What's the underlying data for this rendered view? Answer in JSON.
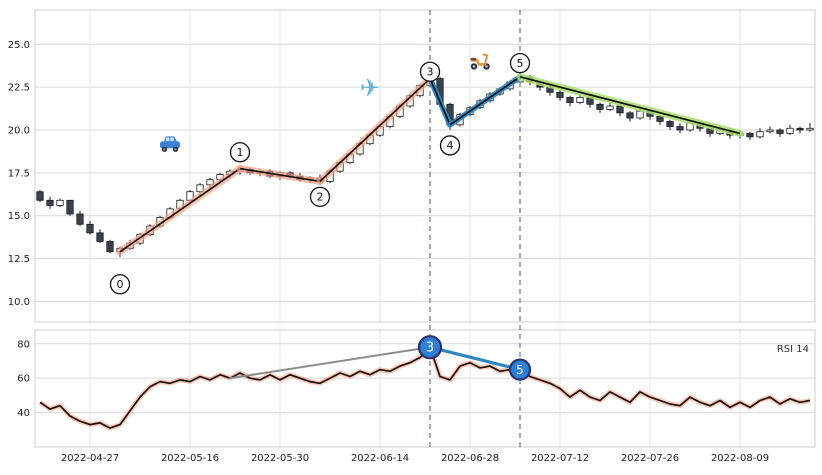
{
  "colors": {
    "background": "#ffffff",
    "grid_h": "#d9d9d9",
    "grid_v": "#e6e6e6",
    "panel_border": "#cccccc",
    "candle_up_fill": "#ffffff",
    "candle_down_fill": "#39414f",
    "candle_border": "#1a1a1a",
    "impulse_glow_salmon": "#f7a083",
    "wave_blue": "#2e86c1",
    "end_glow_green": "#aade72",
    "line_core_black": "#111111",
    "vline_dashed": "#64748b",
    "rsi_line_core": "#1a0d02",
    "rsi_glow": "#f7a083",
    "rsi_gray_trend": "#8c8c8c",
    "rsi_blue_trend": "#2e86c1",
    "marker_fill_blue": "#2e7fd6",
    "marker_ring_navy": "#2c2f6b",
    "tick_text": "#202020",
    "car_body": "#3b82d6",
    "plane_blue": "#6fb3d9",
    "scooter_orange": "#e8913a"
  },
  "chart_data": [
    {
      "type": "candlestick",
      "title": "",
      "x_tick_labels": [
        "2022-04-27",
        "2022-05-16",
        "2022-05-30",
        "2022-06-14",
        "2022-06-28",
        "2022-07-12",
        "2022-07-26",
        "2022-08-09"
      ],
      "x_tick_indices": [
        5,
        15,
        24,
        34,
        43,
        52,
        61,
        70
      ],
      "yticks": [
        25.0,
        22.5,
        20.0,
        17.5,
        15.0,
        12.5,
        10.0
      ],
      "ytick_labels": [
        "25.0",
        "22.5",
        "20.0",
        "17.5",
        "15.0",
        "12.5",
        "10.0"
      ],
      "ylim": [
        8.8,
        27.0
      ],
      "grid": true,
      "candles": [
        [
          16.4,
          16.5,
          15.8,
          15.9
        ],
        [
          15.9,
          16.1,
          15.4,
          15.6
        ],
        [
          15.6,
          16.0,
          15.5,
          15.9
        ],
        [
          15.9,
          15.9,
          15.0,
          15.1
        ],
        [
          15.1,
          15.3,
          14.4,
          14.5
        ],
        [
          14.5,
          14.7,
          13.9,
          14.0
        ],
        [
          14.0,
          14.2,
          13.4,
          13.5
        ],
        [
          13.5,
          13.6,
          12.8,
          12.9
        ],
        [
          12.9,
          13.2,
          12.6,
          13.1
        ],
        [
          13.1,
          13.6,
          13.0,
          13.4
        ],
        [
          13.4,
          14.0,
          13.3,
          13.9
        ],
        [
          13.9,
          14.5,
          13.8,
          14.4
        ],
        [
          14.4,
          15.0,
          14.3,
          14.9
        ],
        [
          14.9,
          15.5,
          14.8,
          15.4
        ],
        [
          15.4,
          16.0,
          15.3,
          15.9
        ],
        [
          15.9,
          16.5,
          15.8,
          16.4
        ],
        [
          16.4,
          16.9,
          16.2,
          16.8
        ],
        [
          16.8,
          17.2,
          16.6,
          17.1
        ],
        [
          17.1,
          17.5,
          16.9,
          17.4
        ],
        [
          17.4,
          17.7,
          17.2,
          17.6
        ],
        [
          17.6,
          17.9,
          17.4,
          17.7
        ],
        [
          17.7,
          17.8,
          17.4,
          17.5
        ],
        [
          17.5,
          17.7,
          17.3,
          17.6
        ],
        [
          17.6,
          17.7,
          17.2,
          17.3
        ],
        [
          17.3,
          17.6,
          17.1,
          17.5
        ],
        [
          17.5,
          17.6,
          17.2,
          17.3
        ],
        [
          17.3,
          17.5,
          17.0,
          17.1
        ],
        [
          17.1,
          17.3,
          16.9,
          17.2
        ],
        [
          17.2,
          17.4,
          16.8,
          17.0
        ],
        [
          17.0,
          17.7,
          16.9,
          17.6
        ],
        [
          17.6,
          18.2,
          17.5,
          18.1
        ],
        [
          18.1,
          18.7,
          18.0,
          18.6
        ],
        [
          18.6,
          19.3,
          18.5,
          19.2
        ],
        [
          19.2,
          19.8,
          19.1,
          19.7
        ],
        [
          19.7,
          20.3,
          19.6,
          20.2
        ],
        [
          20.2,
          20.9,
          20.1,
          20.8
        ],
        [
          20.8,
          21.5,
          20.7,
          21.4
        ],
        [
          21.4,
          22.1,
          21.3,
          22.0
        ],
        [
          22.0,
          22.7,
          21.9,
          22.6
        ],
        [
          22.6,
          23.3,
          22.5,
          23.0
        ],
        [
          23.0,
          23.1,
          21.3,
          21.5
        ],
        [
          21.5,
          21.6,
          20.0,
          20.3
        ],
        [
          20.3,
          21.0,
          20.2,
          20.9
        ],
        [
          20.9,
          21.4,
          20.8,
          21.3
        ],
        [
          21.3,
          21.8,
          21.2,
          21.7
        ],
        [
          21.7,
          22.2,
          21.6,
          22.1
        ],
        [
          22.1,
          22.5,
          22.0,
          22.4
        ],
        [
          22.4,
          22.9,
          22.3,
          22.8
        ],
        [
          22.8,
          23.4,
          22.7,
          23.1
        ],
        [
          23.1,
          23.2,
          22.6,
          22.8
        ],
        [
          22.8,
          22.9,
          22.3,
          22.5
        ],
        [
          22.5,
          22.7,
          22.0,
          22.2
        ],
        [
          22.2,
          22.4,
          21.7,
          21.9
        ],
        [
          21.9,
          22.0,
          21.4,
          21.6
        ],
        [
          21.6,
          22.1,
          21.5,
          21.9
        ],
        [
          21.9,
          22.0,
          21.3,
          21.5
        ],
        [
          21.5,
          21.6,
          21.0,
          21.2
        ],
        [
          21.2,
          21.6,
          21.1,
          21.4
        ],
        [
          21.4,
          21.5,
          20.8,
          21.0
        ],
        [
          21.0,
          21.1,
          20.5,
          20.7
        ],
        [
          20.7,
          21.3,
          20.6,
          21.1
        ],
        [
          21.1,
          21.2,
          20.6,
          20.8
        ],
        [
          20.8,
          20.9,
          20.3,
          20.5
        ],
        [
          20.5,
          20.6,
          20.0,
          20.2
        ],
        [
          20.2,
          20.4,
          19.8,
          20.0
        ],
        [
          20.0,
          20.6,
          19.9,
          20.4
        ],
        [
          20.4,
          20.5,
          19.9,
          20.1
        ],
        [
          20.1,
          20.2,
          19.6,
          19.8
        ],
        [
          19.8,
          20.2,
          19.7,
          20.0
        ],
        [
          20.0,
          20.1,
          19.5,
          19.7
        ],
        [
          19.7,
          20.0,
          19.5,
          19.8
        ],
        [
          19.8,
          19.9,
          19.4,
          19.6
        ],
        [
          19.6,
          20.1,
          19.5,
          19.9
        ],
        [
          19.9,
          20.2,
          19.8,
          20.0
        ],
        [
          20.0,
          20.1,
          19.6,
          19.8
        ],
        [
          19.8,
          20.3,
          19.7,
          20.1
        ],
        [
          20.1,
          20.2,
          19.8,
          20.0
        ],
        [
          20.0,
          20.4,
          19.9,
          20.1
        ]
      ],
      "trend_lines": [
        {
          "from": [
            8,
            12.9
          ],
          "to": [
            20,
            17.75
          ],
          "color_key": "salmon"
        },
        {
          "from": [
            20,
            17.75
          ],
          "to": [
            28,
            17.0
          ],
          "color_key": "salmon"
        },
        {
          "from": [
            28,
            17.0
          ],
          "to": [
            39,
            23.0
          ],
          "color_key": "salmon"
        },
        {
          "from": [
            39,
            23.0
          ],
          "to": [
            41,
            20.3
          ],
          "color_key": "blue"
        },
        {
          "from": [
            41,
            20.3
          ],
          "to": [
            48,
            23.1
          ],
          "color_key": "blue"
        },
        {
          "from": [
            48,
            23.1
          ],
          "to": [
            70,
            19.8
          ],
          "color_key": "green"
        }
      ],
      "wave_labels": [
        {
          "label": "0",
          "index": 8,
          "price": 11.0
        },
        {
          "label": "1",
          "index": 20,
          "price": 18.7
        },
        {
          "label": "2",
          "index": 28,
          "price": 16.1
        },
        {
          "label": "3",
          "index": 39,
          "price": 23.4
        },
        {
          "label": "4",
          "index": 41,
          "price": 19.1
        },
        {
          "label": "5",
          "index": 48,
          "price": 23.9
        }
      ],
      "emojis": [
        {
          "name": "car-icon",
          "char": "🚙",
          "index": 13,
          "price": 19.1
        },
        {
          "name": "airplane-icon",
          "char": "✈️",
          "index": 33,
          "price": 22.4
        },
        {
          "name": "scooter-icon",
          "char": "🛵",
          "index": 44,
          "price": 24.0
        }
      ],
      "vline_indices": [
        39,
        48
      ]
    },
    {
      "type": "line",
      "name": "RSI 14",
      "label": "RSI 14",
      "yticks": [
        80,
        60,
        40
      ],
      "ytick_labels": [
        "80",
        "60",
        "40"
      ],
      "ylim": [
        20,
        88
      ],
      "grid": true,
      "values": [
        46,
        42,
        44,
        38,
        35,
        33,
        34,
        31,
        33,
        41,
        49,
        55,
        58,
        57,
        59,
        58,
        61,
        59,
        62,
        60,
        63,
        60,
        59,
        62,
        59,
        62,
        60,
        58,
        57,
        60,
        63,
        61,
        64,
        62,
        65,
        64,
        67,
        69,
        72,
        78,
        61,
        59,
        67,
        69,
        66,
        67,
        64,
        65,
        65,
        61,
        59,
        57,
        54,
        49,
        53,
        49,
        47,
        52,
        49,
        46,
        52,
        49,
        47,
        45,
        44,
        49,
        46,
        44,
        47,
        43,
        46,
        43,
        47,
        49,
        45,
        48,
        46,
        47
      ],
      "trend_lines": [
        {
          "from": [
            19,
            60
          ],
          "to": [
            39,
            78
          ],
          "color_key": "gray"
        },
        {
          "from": [
            39,
            78
          ],
          "to": [
            48,
            65
          ],
          "color_key": "blue"
        }
      ],
      "markers": [
        {
          "label": "3",
          "index": 39,
          "value": 78
        },
        {
          "label": "5",
          "index": 48,
          "value": 65
        }
      ],
      "vline_indices": [
        39,
        48
      ]
    }
  ]
}
